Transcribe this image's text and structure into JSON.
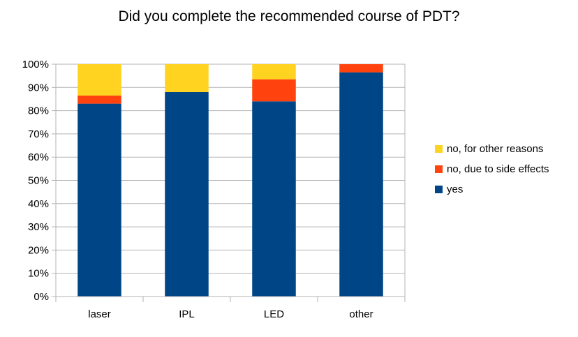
{
  "chart_data": {
    "type": "bar",
    "stacked": true,
    "title": "Did you complete the recommended course of PDT?",
    "xlabel": "",
    "ylabel": "",
    "ylim": [
      0,
      100
    ],
    "y_ticks": [
      "0%",
      "10%",
      "20%",
      "30%",
      "40%",
      "50%",
      "60%",
      "70%",
      "80%",
      "90%",
      "100%"
    ],
    "grid": true,
    "legend_position": "right",
    "categories": [
      "laser",
      "IPL",
      "LED",
      "other"
    ],
    "series": [
      {
        "name": "yes",
        "color": "#004586",
        "values": [
          83,
          88,
          84,
          96.5
        ]
      },
      {
        "name": "no, due to side effects",
        "color": "#ff420e",
        "values": [
          3.5,
          0,
          9.5,
          3.5
        ]
      },
      {
        "name": "no, for other reasons",
        "color": "#ffd320",
        "values": [
          13.5,
          12,
          6.5,
          0
        ]
      }
    ]
  }
}
